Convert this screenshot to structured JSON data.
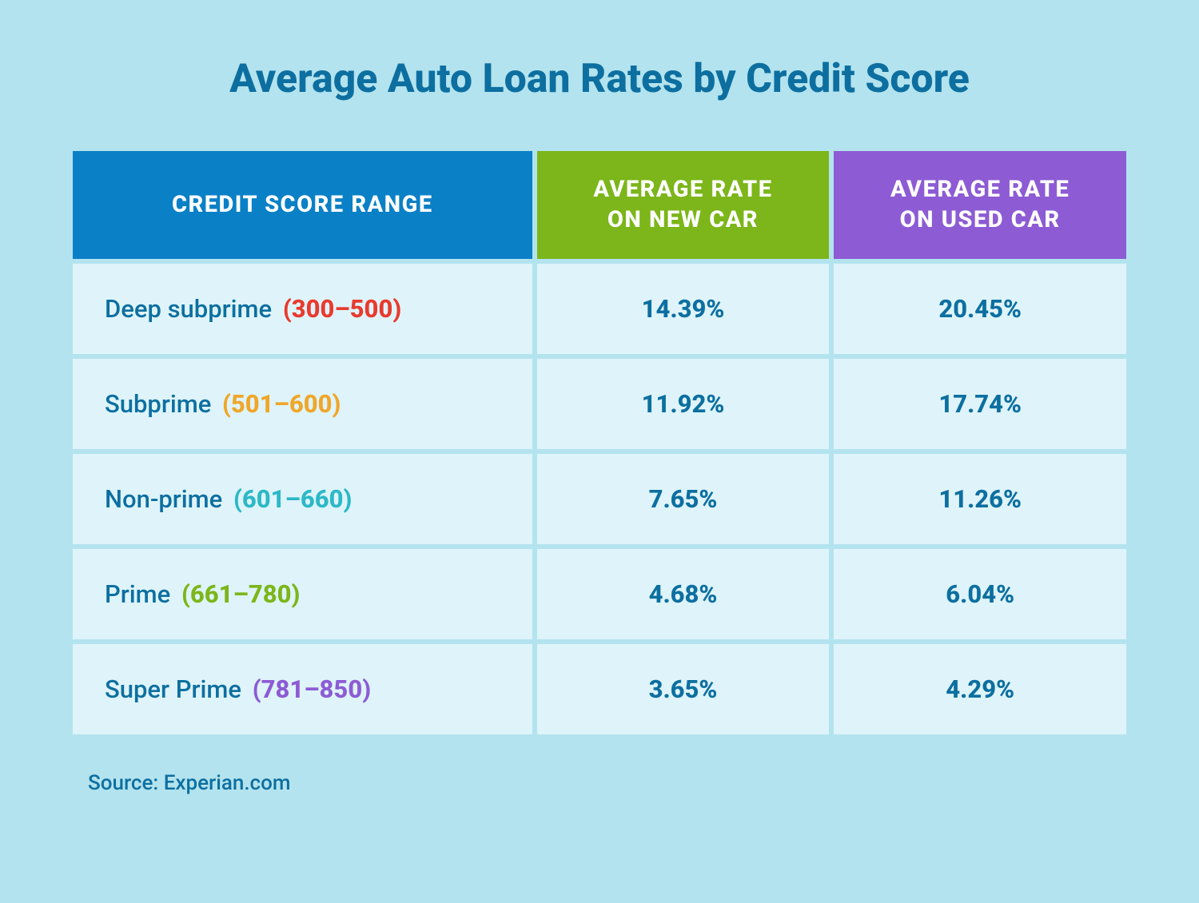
{
  "title": "Average Auto Loan Rates by Credit Score",
  "table": {
    "type": "table",
    "columns": [
      {
        "label": "CREDIT SCORE RANGE",
        "bg_color": "#0a80c7",
        "width_pct": 44
      },
      {
        "label": "AVERAGE RATE ON NEW CAR",
        "bg_color": "#7cb61a",
        "width_pct": 28
      },
      {
        "label": "AVERAGE RATE ON USED CAR",
        "bg_color": "#8d5bd4",
        "width_pct": 28
      }
    ],
    "rows": [
      {
        "label": "Deep subprime",
        "range": "(300–500)",
        "range_color": "#e93a2e",
        "new_rate": "14.39%",
        "used_rate": "20.45%"
      },
      {
        "label": "Subprime",
        "range": "(501–600)",
        "range_color": "#f0a629",
        "new_rate": "11.92%",
        "used_rate": "17.74%"
      },
      {
        "label": "Non-prime",
        "range": "(601–660)",
        "range_color": "#2cb8c7",
        "new_rate": "7.65%",
        "used_rate": "11.26%"
      },
      {
        "label": "Prime",
        "range": "(661–780)",
        "range_color": "#7cb61a",
        "new_rate": "4.68%",
        "used_rate": "6.04%"
      },
      {
        "label": "Super Prime",
        "range": "(781–850)",
        "range_color": "#8d5bd4",
        "new_rate": "3.65%",
        "used_rate": "4.29%"
      }
    ],
    "header_text_color": "#ffffff",
    "header_fontsize": 29,
    "cell_bg": "#def4fa",
    "cell_text_color": "#0d6fa0",
    "cell_fontsize": 31,
    "border_spacing": 6
  },
  "source": "Source: Experian.com",
  "background_color": "#b3e3ee",
  "title_color": "#0d6fa0",
  "title_fontsize": 50
}
